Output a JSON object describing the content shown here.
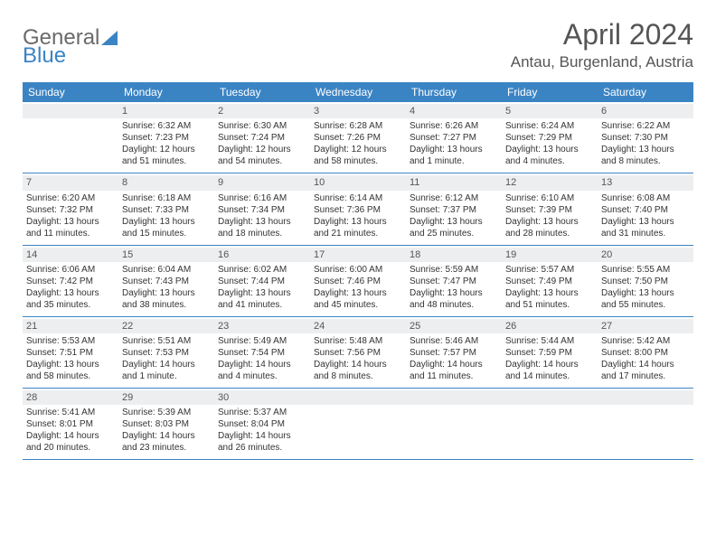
{
  "logo": {
    "text1": "General",
    "text2": "Blue"
  },
  "title": "April 2024",
  "location": "Antau, Burgenland, Austria",
  "dayNames": [
    "Sunday",
    "Monday",
    "Tuesday",
    "Wednesday",
    "Thursday",
    "Friday",
    "Saturday"
  ],
  "colors": {
    "headerBg": "#3b84c4",
    "dayNumBg": "#eceef0",
    "text": "#333333",
    "titleText": "#555555"
  },
  "weeks": [
    [
      {
        "n": "",
        "sr": "",
        "ss": "",
        "dl": ""
      },
      {
        "n": "1",
        "sr": "Sunrise: 6:32 AM",
        "ss": "Sunset: 7:23 PM",
        "dl": "Daylight: 12 hours and 51 minutes."
      },
      {
        "n": "2",
        "sr": "Sunrise: 6:30 AM",
        "ss": "Sunset: 7:24 PM",
        "dl": "Daylight: 12 hours and 54 minutes."
      },
      {
        "n": "3",
        "sr": "Sunrise: 6:28 AM",
        "ss": "Sunset: 7:26 PM",
        "dl": "Daylight: 12 hours and 58 minutes."
      },
      {
        "n": "4",
        "sr": "Sunrise: 6:26 AM",
        "ss": "Sunset: 7:27 PM",
        "dl": "Daylight: 13 hours and 1 minute."
      },
      {
        "n": "5",
        "sr": "Sunrise: 6:24 AM",
        "ss": "Sunset: 7:29 PM",
        "dl": "Daylight: 13 hours and 4 minutes."
      },
      {
        "n": "6",
        "sr": "Sunrise: 6:22 AM",
        "ss": "Sunset: 7:30 PM",
        "dl": "Daylight: 13 hours and 8 minutes."
      }
    ],
    [
      {
        "n": "7",
        "sr": "Sunrise: 6:20 AM",
        "ss": "Sunset: 7:32 PM",
        "dl": "Daylight: 13 hours and 11 minutes."
      },
      {
        "n": "8",
        "sr": "Sunrise: 6:18 AM",
        "ss": "Sunset: 7:33 PM",
        "dl": "Daylight: 13 hours and 15 minutes."
      },
      {
        "n": "9",
        "sr": "Sunrise: 6:16 AM",
        "ss": "Sunset: 7:34 PM",
        "dl": "Daylight: 13 hours and 18 minutes."
      },
      {
        "n": "10",
        "sr": "Sunrise: 6:14 AM",
        "ss": "Sunset: 7:36 PM",
        "dl": "Daylight: 13 hours and 21 minutes."
      },
      {
        "n": "11",
        "sr": "Sunrise: 6:12 AM",
        "ss": "Sunset: 7:37 PM",
        "dl": "Daylight: 13 hours and 25 minutes."
      },
      {
        "n": "12",
        "sr": "Sunrise: 6:10 AM",
        "ss": "Sunset: 7:39 PM",
        "dl": "Daylight: 13 hours and 28 minutes."
      },
      {
        "n": "13",
        "sr": "Sunrise: 6:08 AM",
        "ss": "Sunset: 7:40 PM",
        "dl": "Daylight: 13 hours and 31 minutes."
      }
    ],
    [
      {
        "n": "14",
        "sr": "Sunrise: 6:06 AM",
        "ss": "Sunset: 7:42 PM",
        "dl": "Daylight: 13 hours and 35 minutes."
      },
      {
        "n": "15",
        "sr": "Sunrise: 6:04 AM",
        "ss": "Sunset: 7:43 PM",
        "dl": "Daylight: 13 hours and 38 minutes."
      },
      {
        "n": "16",
        "sr": "Sunrise: 6:02 AM",
        "ss": "Sunset: 7:44 PM",
        "dl": "Daylight: 13 hours and 41 minutes."
      },
      {
        "n": "17",
        "sr": "Sunrise: 6:00 AM",
        "ss": "Sunset: 7:46 PM",
        "dl": "Daylight: 13 hours and 45 minutes."
      },
      {
        "n": "18",
        "sr": "Sunrise: 5:59 AM",
        "ss": "Sunset: 7:47 PM",
        "dl": "Daylight: 13 hours and 48 minutes."
      },
      {
        "n": "19",
        "sr": "Sunrise: 5:57 AM",
        "ss": "Sunset: 7:49 PM",
        "dl": "Daylight: 13 hours and 51 minutes."
      },
      {
        "n": "20",
        "sr": "Sunrise: 5:55 AM",
        "ss": "Sunset: 7:50 PM",
        "dl": "Daylight: 13 hours and 55 minutes."
      }
    ],
    [
      {
        "n": "21",
        "sr": "Sunrise: 5:53 AM",
        "ss": "Sunset: 7:51 PM",
        "dl": "Daylight: 13 hours and 58 minutes."
      },
      {
        "n": "22",
        "sr": "Sunrise: 5:51 AM",
        "ss": "Sunset: 7:53 PM",
        "dl": "Daylight: 14 hours and 1 minute."
      },
      {
        "n": "23",
        "sr": "Sunrise: 5:49 AM",
        "ss": "Sunset: 7:54 PM",
        "dl": "Daylight: 14 hours and 4 minutes."
      },
      {
        "n": "24",
        "sr": "Sunrise: 5:48 AM",
        "ss": "Sunset: 7:56 PM",
        "dl": "Daylight: 14 hours and 8 minutes."
      },
      {
        "n": "25",
        "sr": "Sunrise: 5:46 AM",
        "ss": "Sunset: 7:57 PM",
        "dl": "Daylight: 14 hours and 11 minutes."
      },
      {
        "n": "26",
        "sr": "Sunrise: 5:44 AM",
        "ss": "Sunset: 7:59 PM",
        "dl": "Daylight: 14 hours and 14 minutes."
      },
      {
        "n": "27",
        "sr": "Sunrise: 5:42 AM",
        "ss": "Sunset: 8:00 PM",
        "dl": "Daylight: 14 hours and 17 minutes."
      }
    ],
    [
      {
        "n": "28",
        "sr": "Sunrise: 5:41 AM",
        "ss": "Sunset: 8:01 PM",
        "dl": "Daylight: 14 hours and 20 minutes."
      },
      {
        "n": "29",
        "sr": "Sunrise: 5:39 AM",
        "ss": "Sunset: 8:03 PM",
        "dl": "Daylight: 14 hours and 23 minutes."
      },
      {
        "n": "30",
        "sr": "Sunrise: 5:37 AM",
        "ss": "Sunset: 8:04 PM",
        "dl": "Daylight: 14 hours and 26 minutes."
      },
      {
        "n": "",
        "sr": "",
        "ss": "",
        "dl": ""
      },
      {
        "n": "",
        "sr": "",
        "ss": "",
        "dl": ""
      },
      {
        "n": "",
        "sr": "",
        "ss": "",
        "dl": ""
      },
      {
        "n": "",
        "sr": "",
        "ss": "",
        "dl": ""
      }
    ]
  ]
}
